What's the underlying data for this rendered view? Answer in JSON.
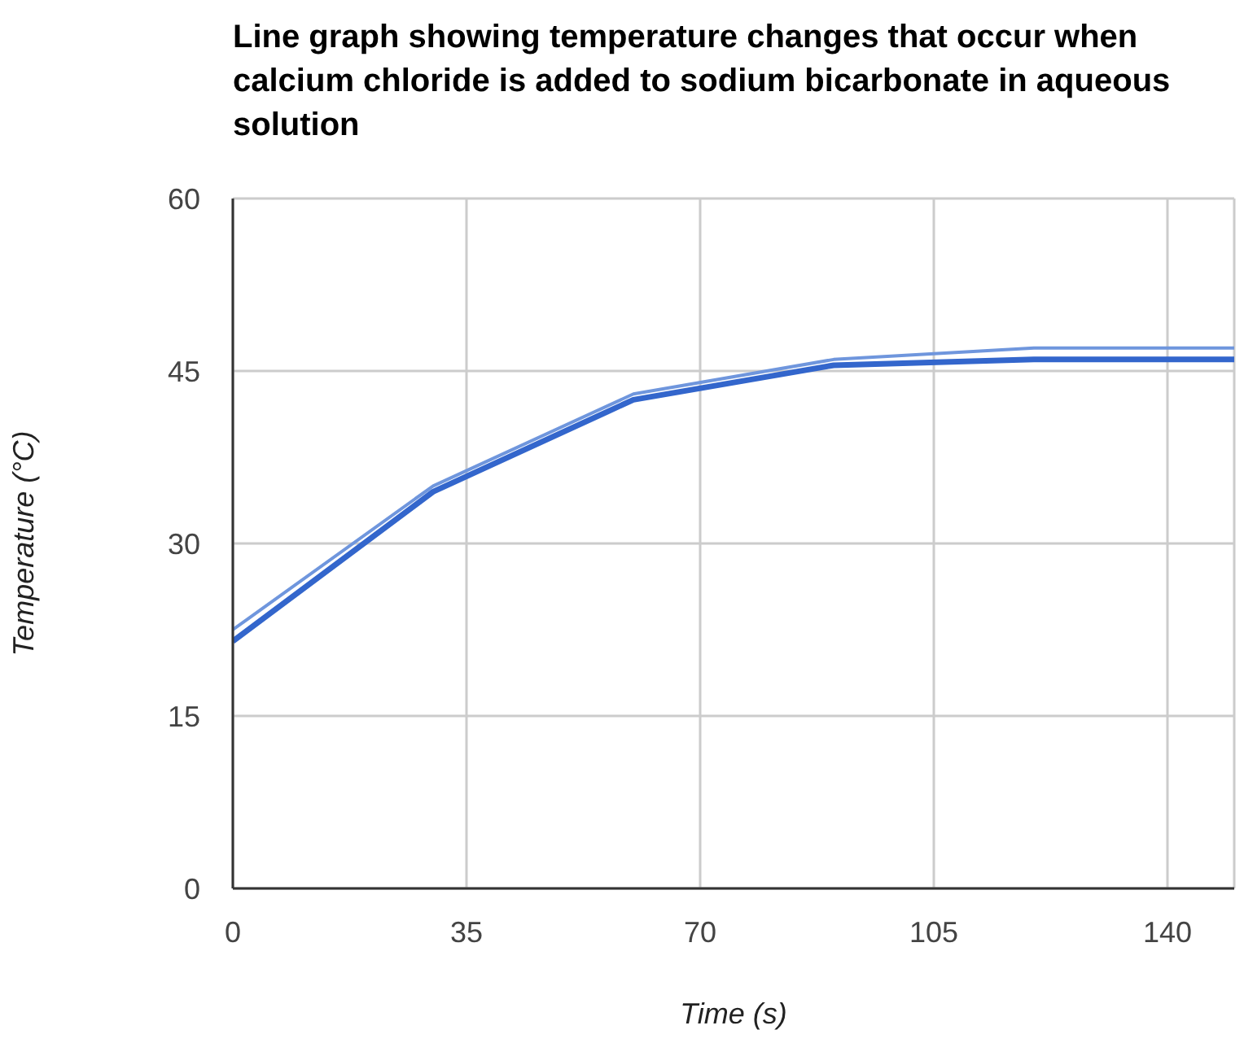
{
  "chart_data": {
    "type": "line",
    "title": "Line graph showing temperature changes that occur when calcium chloride is added to sodium bicarbonate in aqueous solution",
    "xlabel": "Time (s)",
    "ylabel": "Temperature (°C)",
    "x": [
      0,
      30,
      60,
      90,
      120,
      150
    ],
    "series": [
      {
        "color": "#6f96dd",
        "values": [
          22.5,
          35,
          43,
          46,
          47,
          47
        ]
      },
      {
        "color": "#3366cc",
        "values": [
          21.5,
          34.5,
          42.5,
          45.5,
          46,
          46
        ]
      }
    ],
    "xlim": [
      0,
      150
    ],
    "xticks": [
      0,
      35,
      70,
      105,
      140
    ],
    "ylim": [
      0,
      60
    ],
    "yticks": [
      0,
      15,
      30,
      45,
      60
    ],
    "grid": true,
    "marker": "none",
    "line_style": "solid"
  }
}
